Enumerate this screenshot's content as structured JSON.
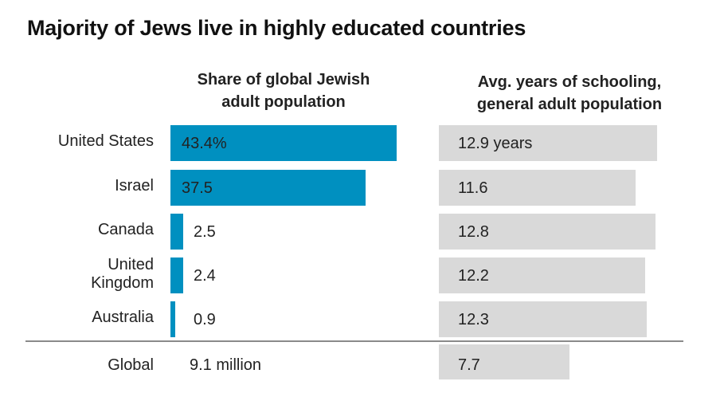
{
  "chart_data": {
    "type": "bar",
    "title": "Majority of Jews live in highly educated countries",
    "categories": [
      "United States",
      "Israel",
      "Canada",
      "United Kingdom",
      "Australia"
    ],
    "series": [
      {
        "name": "Share of global Jewish adult population",
        "values": [
          43.4,
          37.5,
          2.5,
          2.4,
          0.9
        ],
        "labels": [
          "43.4%",
          "37.5",
          "2.5",
          "2.4",
          "0.9"
        ],
        "color": "#0090c0"
      },
      {
        "name": "Avg. years of schooling, general adult population",
        "values": [
          12.9,
          11.6,
          12.8,
          12.2,
          12.3
        ],
        "labels": [
          "12.9 years",
          "11.6",
          "12.8",
          "12.2",
          "12.3"
        ],
        "color": "#d9d9d9"
      }
    ],
    "headers": {
      "left": [
        "Share of global Jewish",
        "adult population"
      ],
      "right": [
        "Avg. years of schooling,",
        "general adult population"
      ]
    },
    "category_lines": [
      [
        "United States"
      ],
      [
        "Israel"
      ],
      [
        "Canada"
      ],
      [
        "United",
        "Kingdom"
      ],
      [
        "Australia"
      ]
    ],
    "global": {
      "label": "Global",
      "population": "9.1 million",
      "schooling": 7.7,
      "schooling_label": "7.7"
    },
    "grid": false,
    "legend": "none"
  }
}
